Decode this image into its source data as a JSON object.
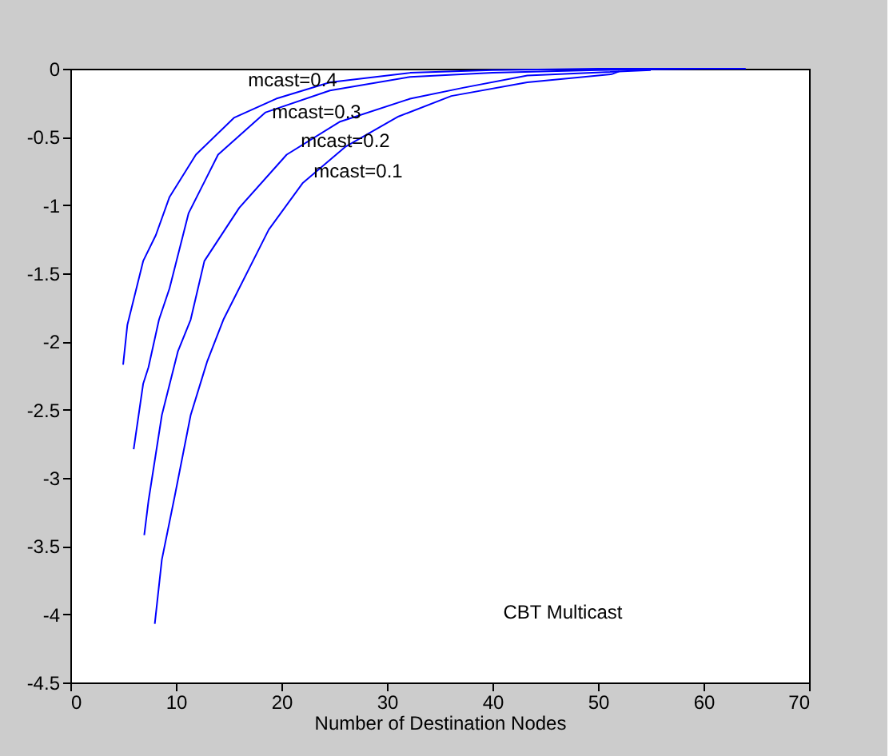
{
  "chart_data": {
    "type": "line",
    "xlabel": "Number of Destination Nodes",
    "xlim": [
      0,
      70
    ],
    "xticks": [
      0,
      10,
      20,
      30,
      40,
      50,
      60,
      70
    ],
    "ylim": [
      -4.5,
      0
    ],
    "yticks": [
      -4.5,
      -4,
      -3.5,
      -3,
      -2.5,
      -2,
      -1.5,
      -1,
      -0.5,
      0
    ],
    "grid": false,
    "line_style": "solid",
    "marker": "none",
    "series": [
      {
        "color": "#0000ff",
        "x": [
          5,
          5.4,
          6.9,
          8.1,
          9.4,
          11.9,
          15.5,
          19.5,
          24.6,
          32.2,
          40,
          50,
          64
        ],
        "values": [
          -2.17,
          -1.88,
          -1.41,
          -1.22,
          -0.94,
          -0.63,
          -0.36,
          -0.22,
          -0.1,
          -0.03,
          -0.01,
          0,
          0
        ]
      },
      {
        "color": "#0000ff",
        "x": [
          6,
          6.9,
          7.4,
          8.4,
          9.4,
          11.2,
          14,
          18.5,
          24.6,
          32.2,
          40,
          50,
          60
        ],
        "values": [
          -2.79,
          -2.31,
          -2.19,
          -1.84,
          -1.61,
          -1.06,
          -0.63,
          -0.32,
          -0.16,
          -0.06,
          -0.03,
          -0.01,
          0
        ]
      },
      {
        "color": "#0000ff",
        "x": [
          7,
          7.4,
          8.67,
          10.2,
          11.4,
          12.7,
          16,
          20.5,
          25.5,
          32.2,
          37.2,
          43.3,
          55
        ],
        "values": [
          -3.42,
          -3.17,
          -2.54,
          -2.07,
          -1.84,
          -1.41,
          -1.02,
          -0.63,
          -0.39,
          -0.22,
          -0.14,
          -0.05,
          -0.01
        ]
      },
      {
        "color": "#0000ff",
        "x": [
          8,
          8.67,
          9.9,
          11.4,
          12.95,
          14.5,
          18.8,
          22,
          26.1,
          31.1,
          36.1,
          43.3,
          51.3,
          52
        ],
        "values": [
          -4.07,
          -3.6,
          -3.13,
          -2.54,
          -2.15,
          -1.84,
          -1.18,
          -0.84,
          -0.57,
          -0.35,
          -0.2,
          -0.1,
          -0.04,
          -0.02
        ]
      }
    ],
    "annotations": [
      "mcast=0.4",
      "mcast=0.3",
      "mcast=0.2",
      "mcast=0.1",
      "CBT Multicast"
    ]
  }
}
